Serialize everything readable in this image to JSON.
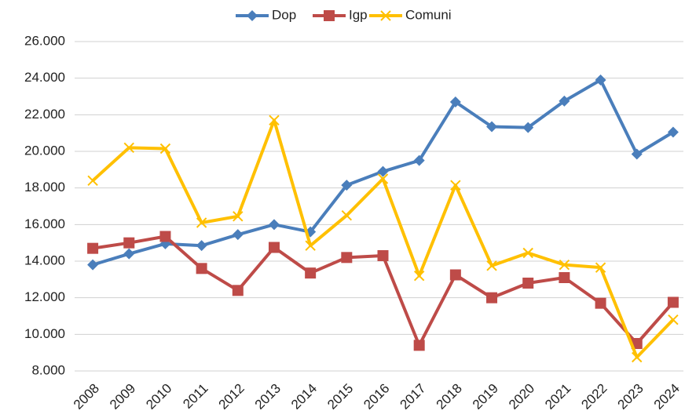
{
  "chart_data": {
    "type": "line",
    "categories": [
      "2008",
      "2009",
      "2010",
      "2011",
      "2012",
      "2013",
      "2014",
      "2015",
      "2016",
      "2017",
      "2018",
      "2019",
      "2020",
      "2021",
      "2022",
      "2023",
      "2024"
    ],
    "series": [
      {
        "name": "Dop",
        "color": "#4a7ebb",
        "marker": "diamond",
        "values": [
          13800,
          14400,
          14950,
          14850,
          15450,
          16000,
          15600,
          18150,
          18900,
          19500,
          22700,
          21350,
          21300,
          22750,
          23900,
          19850,
          21050
        ]
      },
      {
        "name": "Igp",
        "color": "#be4b48",
        "marker": "square",
        "values": [
          14700,
          15000,
          15350,
          13600,
          12400,
          14750,
          13350,
          14200,
          14300,
          9400,
          13250,
          12000,
          12800,
          13100,
          11700,
          9500,
          11750
        ]
      },
      {
        "name": "Comuni",
        "color": "#ffc000",
        "marker": "x",
        "values": [
          18400,
          20200,
          20150,
          16100,
          16450,
          21700,
          14850,
          16500,
          18500,
          13200,
          18150,
          13750,
          14450,
          13800,
          13650,
          8750,
          10800
        ]
      }
    ],
    "ylim": [
      8000,
      26000
    ],
    "yticks": [
      {
        "value": 8000,
        "label": "8.000"
      },
      {
        "value": 10000,
        "label": "10.000"
      },
      {
        "value": 12000,
        "label": "12.000"
      },
      {
        "value": 14000,
        "label": "14.000"
      },
      {
        "value": 16000,
        "label": "16.000"
      },
      {
        "value": 18000,
        "label": "18.000"
      },
      {
        "value": 20000,
        "label": "20.000"
      },
      {
        "value": 22000,
        "label": "22.000"
      },
      {
        "value": 24000,
        "label": "24.000"
      },
      {
        "value": 26000,
        "label": "26.000"
      }
    ],
    "grid": true,
    "legend": "top"
  }
}
